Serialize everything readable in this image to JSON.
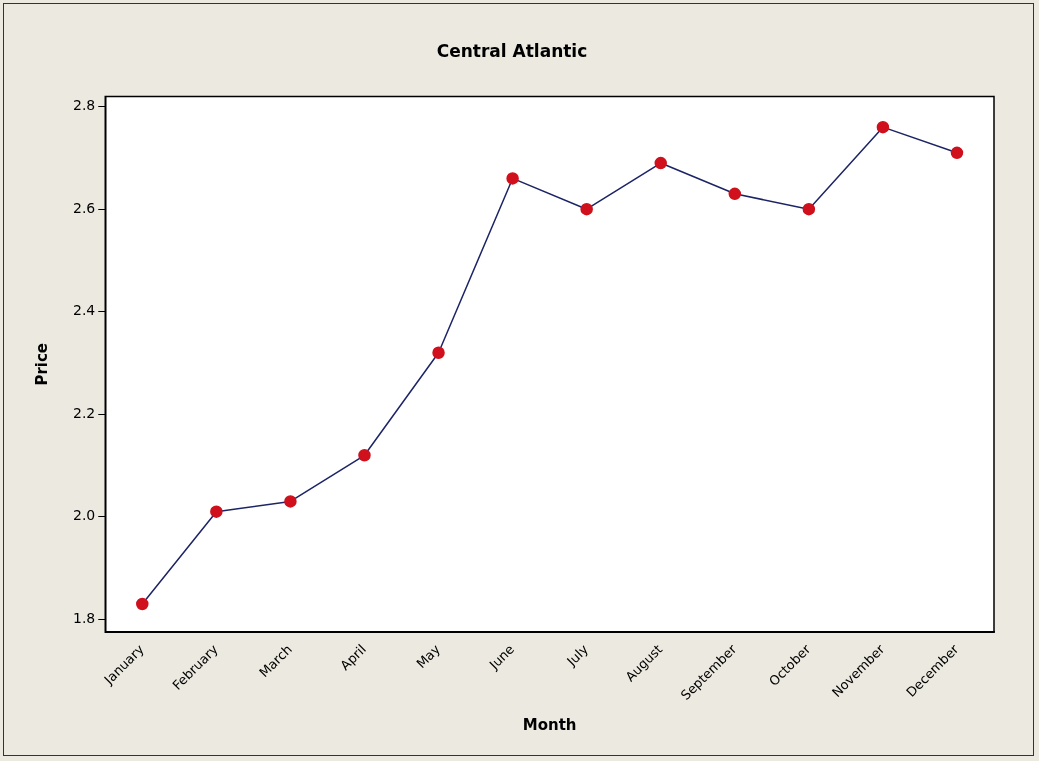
{
  "chart_data": {
    "type": "line",
    "title": "Central Atlantic",
    "xlabel": "Month",
    "ylabel": "Price",
    "categories": [
      "January",
      "February",
      "March",
      "April",
      "May",
      "June",
      "July",
      "August",
      "September",
      "October",
      "November",
      "December"
    ],
    "series": [
      {
        "color": "#d0101c",
        "values": [
          1.83,
          2.01,
          2.03,
          2.12,
          2.32,
          2.66,
          2.6,
          2.69,
          2.63,
          2.6,
          2.76,
          2.71
        ]
      }
    ],
    "ylim": [
      1.775,
      2.82
    ],
    "yticks": [
      {
        "value": 1.8,
        "label": "1.8"
      },
      {
        "value": 2.0,
        "label": "2.0"
      },
      {
        "value": 2.2,
        "label": "2.2"
      },
      {
        "value": 2.4,
        "label": "2.4"
      },
      {
        "value": 2.6,
        "label": "2.6"
      },
      {
        "value": 2.8,
        "label": "2.8"
      }
    ],
    "grid": false,
    "legend": false,
    "marker": "circle",
    "line_style": "solid"
  }
}
